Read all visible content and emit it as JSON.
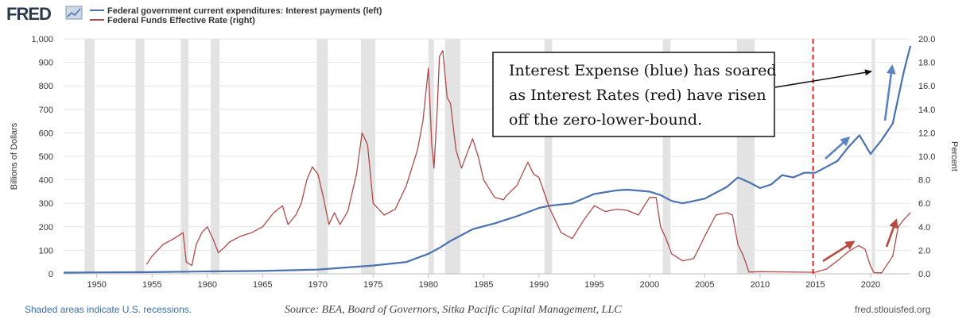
{
  "header": {
    "logo": "FRED"
  },
  "annotation": {
    "lines": [
      "Interest Expense (blue) has soared",
      "as Interest Rates (red) have risen",
      "off the zero-lower-bound."
    ]
  },
  "footer": {
    "recessions_note": "Shaded areas indicate U.S. recessions.",
    "source": "Source: BEA, Board of Governors, Sitka Pacific Capital Management, LLC",
    "site": "fred.stlouisfed.org"
  },
  "colors": {
    "interest_payments": "#4a72b0",
    "fed_funds": "#b04a4a",
    "recession": "#e3e3e3",
    "marker_line": "#dd2222",
    "blue_arrow": "#5b84c4",
    "red_arrow": "#b84a44",
    "grid": "#e6e6e6"
  },
  "chart_data": {
    "type": "line",
    "x_ticks": [
      "1950",
      "1955",
      "1960",
      "1965",
      "1970",
      "1975",
      "1980",
      "1985",
      "1990",
      "1995",
      "2000",
      "2005",
      "2010",
      "2015",
      "2020"
    ],
    "x_tick_values": [
      1950,
      1955,
      1960,
      1965,
      1970,
      1975,
      1980,
      1985,
      1990,
      1995,
      2000,
      2005,
      2010,
      2015,
      2020
    ],
    "xlim": [
      1947,
      2023.6
    ],
    "left_axis": {
      "label": "Billions of Dollars",
      "ylim": [
        0,
        1000
      ],
      "ticks": [
        "0",
        "100",
        "200",
        "300",
        "400",
        "500",
        "600",
        "700",
        "800",
        "900",
        "1,000"
      ],
      "tick_values": [
        0,
        100,
        200,
        300,
        400,
        500,
        600,
        700,
        800,
        900,
        1000
      ]
    },
    "right_axis": {
      "label": "Percent",
      "ylim": [
        0,
        20
      ],
      "ticks": [
        "0.0",
        "2.0",
        "4.0",
        "6.0",
        "8.0",
        "10.0",
        "12.0",
        "14.0",
        "16.0",
        "18.0",
        "20.0"
      ],
      "tick_values": [
        0,
        2,
        4,
        6,
        8,
        10,
        12,
        14,
        16,
        18,
        20
      ]
    },
    "grid": true,
    "legend_position": "top-left",
    "recessions": [
      [
        1948.9,
        1949.8
      ],
      [
        1953.5,
        1954.3
      ],
      [
        1957.6,
        1958.3
      ],
      [
        1960.3,
        1961.1
      ],
      [
        1969.9,
        1970.9
      ],
      [
        1973.9,
        1975.2
      ],
      [
        1980.0,
        1980.5
      ],
      [
        1981.5,
        1982.9
      ],
      [
        1990.5,
        1991.2
      ],
      [
        2001.2,
        2001.9
      ],
      [
        2007.9,
        2009.5
      ],
      [
        2020.1,
        2020.4
      ]
    ],
    "marker_line_x": 2014.8,
    "series": [
      {
        "name": "Federal government current expenditures: Interest payments (left)",
        "axis": "left",
        "x": [
          1947,
          1950,
          1955,
          1960,
          1965,
          1970,
          1972,
          1975,
          1978,
          1980,
          1981,
          1982,
          1984,
          1986,
          1988,
          1990,
          1991,
          1993,
          1995,
          1997,
          1998,
          2000,
          2001,
          2002,
          2003,
          2005,
          2007,
          2008,
          2009,
          2010,
          2011,
          2012,
          2013,
          2014,
          2015,
          2016,
          2017,
          2018,
          2019,
          2020,
          2021,
          2022,
          2023,
          2023.6
        ],
        "y": [
          5,
          6,
          7,
          10,
          12,
          18,
          25,
          35,
          50,
          85,
          110,
          140,
          190,
          215,
          245,
          280,
          290,
          300,
          340,
          355,
          358,
          350,
          335,
          310,
          300,
          320,
          370,
          410,
          390,
          365,
          380,
          420,
          410,
          430,
          430,
          455,
          480,
          540,
          590,
          510,
          570,
          640,
          860,
          970
        ]
      },
      {
        "name": "Federal Funds Effective Rate (right)",
        "axis": "right",
        "x": [
          1954.5,
          1955,
          1956,
          1957,
          1957.8,
          1958.1,
          1958.6,
          1959,
          1959.5,
          1960,
          1960.5,
          1961,
          1961.5,
          1962,
          1963,
          1964,
          1965,
          1966,
          1966.8,
          1967.3,
          1968,
          1968.5,
          1969,
          1969.5,
          1970,
          1970.5,
          1971,
          1971.5,
          1972,
          1972.7,
          1973,
          1973.5,
          1974,
          1974.5,
          1975,
          1975.5,
          1976,
          1977,
          1978,
          1979,
          1979.5,
          1980,
          1980.3,
          1980.5,
          1980.8,
          1981,
          1981.3,
          1981.7,
          1982,
          1982.5,
          1983,
          1984,
          1984.5,
          1985,
          1986,
          1986.8,
          1987,
          1988,
          1989,
          1989.5,
          1990,
          1991,
          1992,
          1993,
          1994,
          1995,
          1996,
          1997,
          1998,
          1999,
          2000,
          2000.6,
          2001,
          2001.5,
          2002,
          2003,
          2004,
          2005,
          2006,
          2007,
          2007.5,
          2008,
          2008.5,
          2009,
          2010,
          2015,
          2015.9,
          2016,
          2017,
          2018,
          2018.9,
          2019.5,
          2020,
          2020.3,
          2021,
          2022,
          2022.5,
          2023,
          2023.6
        ],
        "y": [
          0.8,
          1.5,
          2.5,
          3.0,
          3.5,
          1.0,
          0.7,
          2.5,
          3.5,
          4.0,
          3.0,
          1.8,
          2.2,
          2.7,
          3.2,
          3.5,
          4.0,
          5.2,
          5.8,
          4.2,
          5.0,
          6.0,
          8.0,
          9.1,
          8.5,
          6.5,
          4.2,
          5.2,
          4.2,
          5.3,
          6.5,
          8.5,
          12.0,
          11.0,
          6.0,
          5.5,
          5.0,
          5.5,
          7.5,
          10.5,
          13.0,
          17.5,
          11.0,
          9.0,
          14.0,
          18.5,
          19.0,
          15.0,
          14.5,
          10.5,
          9.0,
          11.5,
          10.0,
          8.0,
          6.5,
          6.3,
          6.6,
          7.5,
          9.5,
          8.5,
          8.2,
          5.5,
          3.5,
          3.0,
          4.5,
          5.8,
          5.3,
          5.5,
          5.4,
          5.0,
          6.5,
          6.5,
          4.0,
          3.0,
          1.7,
          1.1,
          1.3,
          3.2,
          5.0,
          5.2,
          5.0,
          2.5,
          1.5,
          0.15,
          0.18,
          0.13,
          0.38,
          0.4,
          1.1,
          1.9,
          2.4,
          2.1,
          0.65,
          0.1,
          0.08,
          1.5,
          4.0,
          4.6,
          5.2
        ]
      }
    ]
  }
}
